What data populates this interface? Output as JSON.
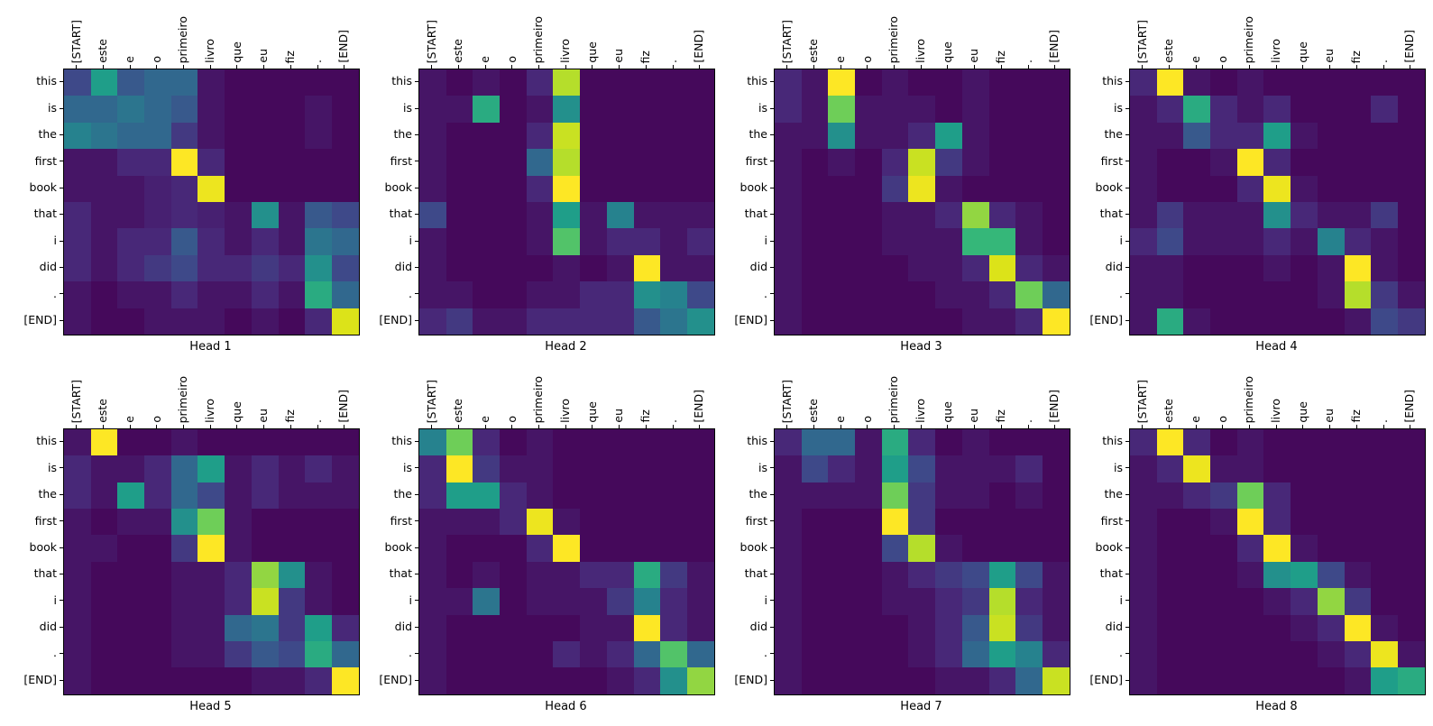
{
  "chart_data": {
    "type": "heatmap",
    "description": "Transformer cross-attention weights per head, English target tokens (rows) attending to Portuguese source tokens (columns)",
    "colormap": "viridis",
    "colormap_stops": [
      "#440154",
      "#482878",
      "#3e4989",
      "#31688e",
      "#26828e",
      "#1f9e89",
      "#35b779",
      "#6ece58",
      "#b5de2b",
      "#dce319",
      "#fde725"
    ],
    "value_range": [
      0,
      1
    ],
    "x_labels": [
      "[START]",
      "este",
      "e",
      "o",
      "primeiro",
      "livro",
      "que",
      "eu",
      "fiz",
      ".",
      "[END]"
    ],
    "y_labels": [
      "this",
      "is",
      "the",
      "first",
      "book",
      "that",
      "i",
      "did",
      ".",
      "[END]"
    ],
    "subplots": [
      {
        "title": "Head 1",
        "values": [
          [
            0.2,
            0.5,
            0.25,
            0.3,
            0.3,
            0.05,
            0.02,
            0.02,
            0.02,
            0.02,
            0.02
          ],
          [
            0.3,
            0.3,
            0.35,
            0.3,
            0.25,
            0.05,
            0.02,
            0.02,
            0.02,
            0.05,
            0.02
          ],
          [
            0.4,
            0.35,
            0.3,
            0.3,
            0.15,
            0.05,
            0.02,
            0.02,
            0.02,
            0.05,
            0.02
          ],
          [
            0.05,
            0.05,
            0.1,
            0.1,
            1.0,
            0.1,
            0.02,
            0.02,
            0.02,
            0.02,
            0.02
          ],
          [
            0.05,
            0.05,
            0.05,
            0.08,
            0.1,
            0.95,
            0.02,
            0.02,
            0.02,
            0.02,
            0.02
          ],
          [
            0.1,
            0.05,
            0.05,
            0.08,
            0.1,
            0.08,
            0.05,
            0.45,
            0.05,
            0.25,
            0.2
          ],
          [
            0.1,
            0.05,
            0.1,
            0.1,
            0.25,
            0.1,
            0.05,
            0.1,
            0.05,
            0.35,
            0.3
          ],
          [
            0.1,
            0.05,
            0.1,
            0.15,
            0.2,
            0.1,
            0.1,
            0.15,
            0.1,
            0.45,
            0.2
          ],
          [
            0.05,
            0.02,
            0.05,
            0.05,
            0.1,
            0.05,
            0.05,
            0.1,
            0.05,
            0.55,
            0.3
          ],
          [
            0.05,
            0.02,
            0.02,
            0.05,
            0.05,
            0.05,
            0.02,
            0.05,
            0.02,
            0.1,
            0.9
          ]
        ]
      },
      {
        "title": "Head 2",
        "values": [
          [
            0.05,
            0.02,
            0.05,
            0.02,
            0.1,
            0.8,
            0.02,
            0.02,
            0.02,
            0.02,
            0.02
          ],
          [
            0.05,
            0.05,
            0.55,
            0.02,
            0.05,
            0.45,
            0.02,
            0.02,
            0.02,
            0.02,
            0.02
          ],
          [
            0.05,
            0.02,
            0.02,
            0.02,
            0.1,
            0.85,
            0.02,
            0.02,
            0.02,
            0.02,
            0.02
          ],
          [
            0.05,
            0.02,
            0.02,
            0.02,
            0.3,
            0.8,
            0.02,
            0.02,
            0.02,
            0.02,
            0.02
          ],
          [
            0.05,
            0.02,
            0.02,
            0.02,
            0.1,
            1.0,
            0.02,
            0.02,
            0.02,
            0.02,
            0.02
          ],
          [
            0.2,
            0.02,
            0.02,
            0.02,
            0.05,
            0.5,
            0.05,
            0.4,
            0.05,
            0.05,
            0.05
          ],
          [
            0.05,
            0.02,
            0.02,
            0.02,
            0.05,
            0.65,
            0.05,
            0.1,
            0.1,
            0.05,
            0.1
          ],
          [
            0.05,
            0.02,
            0.02,
            0.02,
            0.02,
            0.05,
            0.02,
            0.05,
            1.0,
            0.05,
            0.05
          ],
          [
            0.05,
            0.05,
            0.02,
            0.02,
            0.05,
            0.05,
            0.1,
            0.1,
            0.45,
            0.4,
            0.2
          ],
          [
            0.1,
            0.15,
            0.05,
            0.05,
            0.1,
            0.1,
            0.1,
            0.1,
            0.25,
            0.35,
            0.45
          ]
        ]
      },
      {
        "title": "Head 3",
        "values": [
          [
            0.1,
            0.05,
            1.0,
            0.02,
            0.05,
            0.02,
            0.02,
            0.05,
            0.02,
            0.02,
            0.02
          ],
          [
            0.1,
            0.05,
            0.7,
            0.05,
            0.05,
            0.05,
            0.02,
            0.05,
            0.02,
            0.02,
            0.02
          ],
          [
            0.05,
            0.05,
            0.45,
            0.05,
            0.05,
            0.1,
            0.5,
            0.05,
            0.02,
            0.02,
            0.02
          ],
          [
            0.05,
            0.02,
            0.05,
            0.02,
            0.1,
            0.85,
            0.15,
            0.05,
            0.02,
            0.02,
            0.02
          ],
          [
            0.05,
            0.02,
            0.02,
            0.02,
            0.15,
            0.95,
            0.05,
            0.02,
            0.02,
            0.02,
            0.02
          ],
          [
            0.05,
            0.02,
            0.02,
            0.02,
            0.05,
            0.05,
            0.1,
            0.75,
            0.1,
            0.05,
            0.02
          ],
          [
            0.05,
            0.02,
            0.02,
            0.02,
            0.05,
            0.05,
            0.05,
            0.6,
            0.6,
            0.05,
            0.02
          ],
          [
            0.05,
            0.02,
            0.02,
            0.02,
            0.02,
            0.05,
            0.05,
            0.1,
            0.9,
            0.1,
            0.05
          ],
          [
            0.05,
            0.02,
            0.02,
            0.02,
            0.02,
            0.02,
            0.05,
            0.05,
            0.1,
            0.7,
            0.3
          ],
          [
            0.05,
            0.02,
            0.02,
            0.02,
            0.02,
            0.02,
            0.02,
            0.05,
            0.05,
            0.1,
            1.0
          ]
        ]
      },
      {
        "title": "Head 4",
        "values": [
          [
            0.1,
            1.0,
            0.05,
            0.02,
            0.05,
            0.02,
            0.02,
            0.02,
            0.02,
            0.02,
            0.02
          ],
          [
            0.05,
            0.1,
            0.55,
            0.1,
            0.05,
            0.1,
            0.02,
            0.02,
            0.02,
            0.1,
            0.02
          ],
          [
            0.05,
            0.05,
            0.25,
            0.1,
            0.1,
            0.5,
            0.05,
            0.02,
            0.02,
            0.02,
            0.02
          ],
          [
            0.05,
            0.02,
            0.02,
            0.05,
            1.0,
            0.1,
            0.02,
            0.02,
            0.02,
            0.02,
            0.02
          ],
          [
            0.05,
            0.02,
            0.02,
            0.02,
            0.1,
            0.95,
            0.05,
            0.02,
            0.02,
            0.02,
            0.02
          ],
          [
            0.05,
            0.15,
            0.05,
            0.05,
            0.05,
            0.45,
            0.1,
            0.05,
            0.05,
            0.15,
            0.02
          ],
          [
            0.1,
            0.2,
            0.05,
            0.05,
            0.05,
            0.1,
            0.05,
            0.4,
            0.1,
            0.05,
            0.02
          ],
          [
            0.05,
            0.05,
            0.02,
            0.02,
            0.02,
            0.05,
            0.02,
            0.05,
            1.0,
            0.05,
            0.02
          ],
          [
            0.05,
            0.05,
            0.02,
            0.02,
            0.02,
            0.02,
            0.02,
            0.05,
            0.8,
            0.15,
            0.05
          ],
          [
            0.05,
            0.55,
            0.05,
            0.02,
            0.02,
            0.02,
            0.02,
            0.02,
            0.05,
            0.2,
            0.15
          ]
        ]
      },
      {
        "title": "Head 5",
        "values": [
          [
            0.05,
            1.0,
            0.02,
            0.02,
            0.05,
            0.02,
            0.02,
            0.02,
            0.02,
            0.02,
            0.02
          ],
          [
            0.1,
            0.05,
            0.05,
            0.1,
            0.3,
            0.5,
            0.05,
            0.1,
            0.05,
            0.1,
            0.05
          ],
          [
            0.1,
            0.05,
            0.5,
            0.1,
            0.3,
            0.2,
            0.05,
            0.1,
            0.05,
            0.05,
            0.05
          ],
          [
            0.05,
            0.02,
            0.05,
            0.05,
            0.45,
            0.7,
            0.05,
            0.02,
            0.02,
            0.02,
            0.02
          ],
          [
            0.05,
            0.05,
            0.02,
            0.02,
            0.15,
            1.0,
            0.05,
            0.02,
            0.02,
            0.02,
            0.02
          ],
          [
            0.05,
            0.02,
            0.02,
            0.02,
            0.05,
            0.05,
            0.1,
            0.75,
            0.45,
            0.05,
            0.02
          ],
          [
            0.05,
            0.02,
            0.02,
            0.02,
            0.05,
            0.05,
            0.1,
            0.85,
            0.15,
            0.05,
            0.02
          ],
          [
            0.05,
            0.02,
            0.02,
            0.02,
            0.05,
            0.05,
            0.3,
            0.35,
            0.15,
            0.5,
            0.1
          ],
          [
            0.05,
            0.02,
            0.02,
            0.02,
            0.05,
            0.05,
            0.15,
            0.25,
            0.2,
            0.55,
            0.3
          ],
          [
            0.05,
            0.02,
            0.02,
            0.02,
            0.02,
            0.02,
            0.02,
            0.05,
            0.05,
            0.1,
            1.0
          ]
        ]
      },
      {
        "title": "Head 6",
        "values": [
          [
            0.4,
            0.7,
            0.1,
            0.02,
            0.05,
            0.02,
            0.02,
            0.02,
            0.02,
            0.02,
            0.02
          ],
          [
            0.1,
            1.0,
            0.15,
            0.05,
            0.05,
            0.02,
            0.02,
            0.02,
            0.02,
            0.02,
            0.02
          ],
          [
            0.1,
            0.5,
            0.5,
            0.1,
            0.05,
            0.02,
            0.02,
            0.02,
            0.02,
            0.02,
            0.02
          ],
          [
            0.05,
            0.05,
            0.05,
            0.1,
            0.95,
            0.05,
            0.02,
            0.02,
            0.02,
            0.02,
            0.02
          ],
          [
            0.05,
            0.02,
            0.02,
            0.02,
            0.1,
            1.0,
            0.02,
            0.02,
            0.02,
            0.02,
            0.02
          ],
          [
            0.05,
            0.02,
            0.05,
            0.02,
            0.05,
            0.05,
            0.1,
            0.1,
            0.55,
            0.15,
            0.05
          ],
          [
            0.05,
            0.05,
            0.35,
            0.02,
            0.05,
            0.05,
            0.05,
            0.15,
            0.4,
            0.1,
            0.05
          ],
          [
            0.05,
            0.02,
            0.02,
            0.02,
            0.02,
            0.02,
            0.05,
            0.05,
            1.0,
            0.1,
            0.05
          ],
          [
            0.05,
            0.02,
            0.02,
            0.02,
            0.02,
            0.1,
            0.05,
            0.1,
            0.3,
            0.65,
            0.3
          ],
          [
            0.05,
            0.02,
            0.02,
            0.02,
            0.02,
            0.02,
            0.02,
            0.05,
            0.1,
            0.45,
            0.75
          ]
        ]
      },
      {
        "title": "Head 7",
        "values": [
          [
            0.1,
            0.3,
            0.3,
            0.05,
            0.55,
            0.1,
            0.02,
            0.05,
            0.02,
            0.02,
            0.02
          ],
          [
            0.05,
            0.2,
            0.1,
            0.05,
            0.5,
            0.2,
            0.05,
            0.05,
            0.05,
            0.1,
            0.02
          ],
          [
            0.05,
            0.05,
            0.05,
            0.05,
            0.7,
            0.15,
            0.05,
            0.05,
            0.02,
            0.05,
            0.02
          ],
          [
            0.05,
            0.02,
            0.02,
            0.02,
            1.0,
            0.15,
            0.02,
            0.02,
            0.02,
            0.02,
            0.02
          ],
          [
            0.05,
            0.02,
            0.02,
            0.02,
            0.2,
            0.8,
            0.05,
            0.02,
            0.02,
            0.02,
            0.02
          ],
          [
            0.05,
            0.02,
            0.02,
            0.02,
            0.05,
            0.1,
            0.15,
            0.2,
            0.5,
            0.2,
            0.05
          ],
          [
            0.05,
            0.02,
            0.02,
            0.02,
            0.05,
            0.05,
            0.1,
            0.15,
            0.8,
            0.1,
            0.05
          ],
          [
            0.05,
            0.02,
            0.02,
            0.02,
            0.02,
            0.05,
            0.1,
            0.25,
            0.85,
            0.15,
            0.05
          ],
          [
            0.05,
            0.02,
            0.02,
            0.02,
            0.02,
            0.05,
            0.1,
            0.3,
            0.5,
            0.4,
            0.1
          ],
          [
            0.05,
            0.02,
            0.02,
            0.02,
            0.02,
            0.02,
            0.05,
            0.05,
            0.1,
            0.3,
            0.85
          ]
        ]
      },
      {
        "title": "Head 8",
        "values": [
          [
            0.1,
            1.0,
            0.1,
            0.02,
            0.05,
            0.02,
            0.02,
            0.02,
            0.02,
            0.02,
            0.02
          ],
          [
            0.05,
            0.1,
            0.95,
            0.05,
            0.05,
            0.02,
            0.02,
            0.02,
            0.02,
            0.02,
            0.02
          ],
          [
            0.05,
            0.05,
            0.1,
            0.15,
            0.7,
            0.1,
            0.02,
            0.02,
            0.02,
            0.02,
            0.02
          ],
          [
            0.05,
            0.02,
            0.02,
            0.05,
            1.0,
            0.1,
            0.02,
            0.02,
            0.02,
            0.02,
            0.02
          ],
          [
            0.05,
            0.02,
            0.02,
            0.02,
            0.1,
            1.0,
            0.05,
            0.02,
            0.02,
            0.02,
            0.02
          ],
          [
            0.05,
            0.02,
            0.02,
            0.02,
            0.05,
            0.45,
            0.5,
            0.2,
            0.05,
            0.02,
            0.02
          ],
          [
            0.05,
            0.02,
            0.02,
            0.02,
            0.02,
            0.05,
            0.1,
            0.75,
            0.15,
            0.02,
            0.02
          ],
          [
            0.05,
            0.02,
            0.02,
            0.02,
            0.02,
            0.02,
            0.05,
            0.1,
            1.0,
            0.05,
            0.02
          ],
          [
            0.05,
            0.02,
            0.02,
            0.02,
            0.02,
            0.02,
            0.02,
            0.05,
            0.1,
            0.95,
            0.05
          ],
          [
            0.05,
            0.02,
            0.02,
            0.02,
            0.02,
            0.02,
            0.02,
            0.02,
            0.05,
            0.5,
            0.55
          ]
        ]
      }
    ]
  }
}
